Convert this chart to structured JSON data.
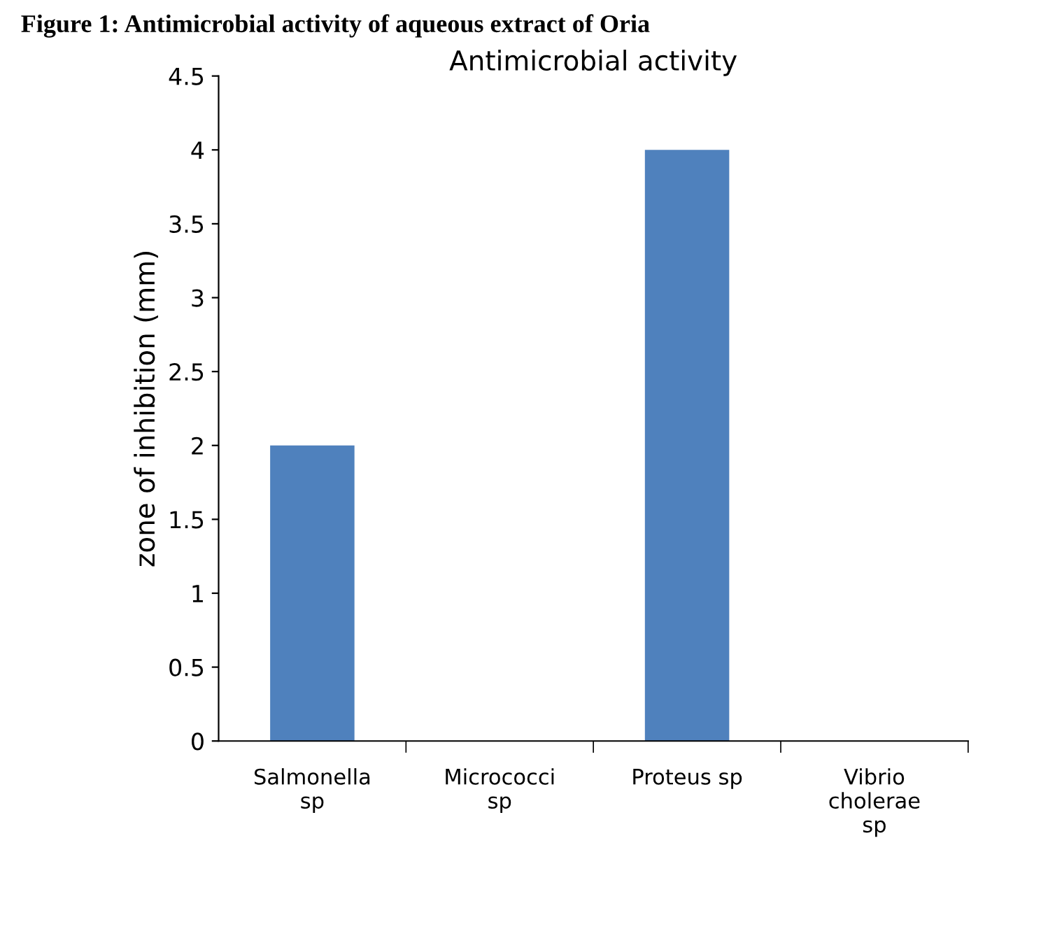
{
  "chart_data": {
    "type": "bar",
    "title": "Antimicrobial activity",
    "ylabel": "zone of inhibition (mm)",
    "annotations": [
      "Figure 1: Antimicrobial activity of aqueous extract of Oria"
    ],
    "categories": [
      "Salmonella\nsp",
      "Micrococci\nsp",
      "Proteus sp",
      "Vibrio\ncholerae\nsp"
    ],
    "values": [
      2,
      0,
      4,
      0
    ],
    "color": "#4f81bd",
    "ylim": [
      0,
      4.5
    ],
    "yticks": [
      0,
      0.5,
      1,
      1.5,
      2,
      2.5,
      3,
      3.5,
      4,
      4.5
    ],
    "grid": false
  }
}
